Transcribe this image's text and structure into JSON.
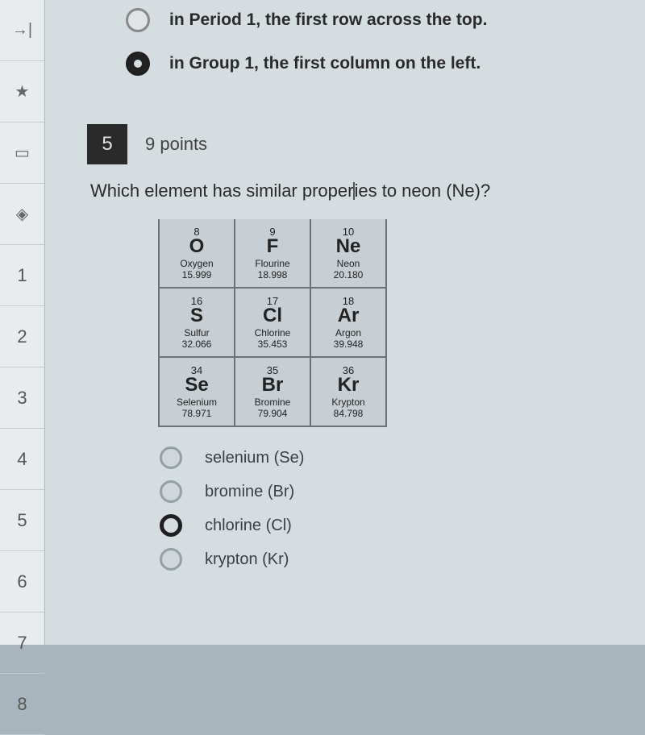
{
  "sidebar": {
    "items": [
      {
        "label": "→|",
        "kind": "icon"
      },
      {
        "label": "★",
        "kind": "icon"
      },
      {
        "label": "▭",
        "kind": "icon"
      },
      {
        "label": "◈",
        "kind": "icon"
      },
      {
        "label": "1",
        "kind": "num"
      },
      {
        "label": "2",
        "kind": "num"
      },
      {
        "label": "3",
        "kind": "num"
      },
      {
        "label": "4",
        "kind": "num"
      },
      {
        "label": "5",
        "kind": "num"
      },
      {
        "label": "6",
        "kind": "num"
      },
      {
        "label": "7",
        "kind": "num"
      },
      {
        "label": "8",
        "kind": "num"
      }
    ]
  },
  "prev_options": [
    {
      "text": "in Period 1, the first row across the top.",
      "selected": false
    },
    {
      "text": "in Group 1, the first column on the left.",
      "selected": true
    }
  ],
  "question": {
    "number": "5",
    "points": "9 points",
    "text_before": "Which element has similar proper",
    "text_after": "ies to neon (Ne)?"
  },
  "periodic": {
    "rows": [
      [
        {
          "atomic": "8",
          "symbol": "O",
          "name": "Oxygen",
          "mass": "15.999"
        },
        {
          "atomic": "9",
          "symbol": "F",
          "name": "Flourine",
          "mass": "18.998"
        },
        {
          "atomic": "10",
          "symbol": "Ne",
          "name": "Neon",
          "mass": "20.180"
        }
      ],
      [
        {
          "atomic": "16",
          "symbol": "S",
          "name": "Sulfur",
          "mass": "32.066"
        },
        {
          "atomic": "17",
          "symbol": "Cl",
          "name": "Chlorine",
          "mass": "35.453"
        },
        {
          "atomic": "18",
          "symbol": "Ar",
          "name": "Argon",
          "mass": "39.948"
        }
      ],
      [
        {
          "atomic": "34",
          "symbol": "Se",
          "name": "Selenium",
          "mass": "78.971"
        },
        {
          "atomic": "35",
          "symbol": "Br",
          "name": "Bromine",
          "mass": "79.904"
        },
        {
          "atomic": "36",
          "symbol": "Kr",
          "name": "Krypton",
          "mass": "84.798"
        }
      ]
    ],
    "cell_bg": "#c7cfd4",
    "cell_border": "#6a7378"
  },
  "answers": [
    {
      "text": "selenium (Se)",
      "selected": false
    },
    {
      "text": "bromine (Br)",
      "selected": false
    },
    {
      "text": "chlorine (Cl)",
      "selected": true
    },
    {
      "text": "krypton (Kr)",
      "selected": false
    }
  ]
}
